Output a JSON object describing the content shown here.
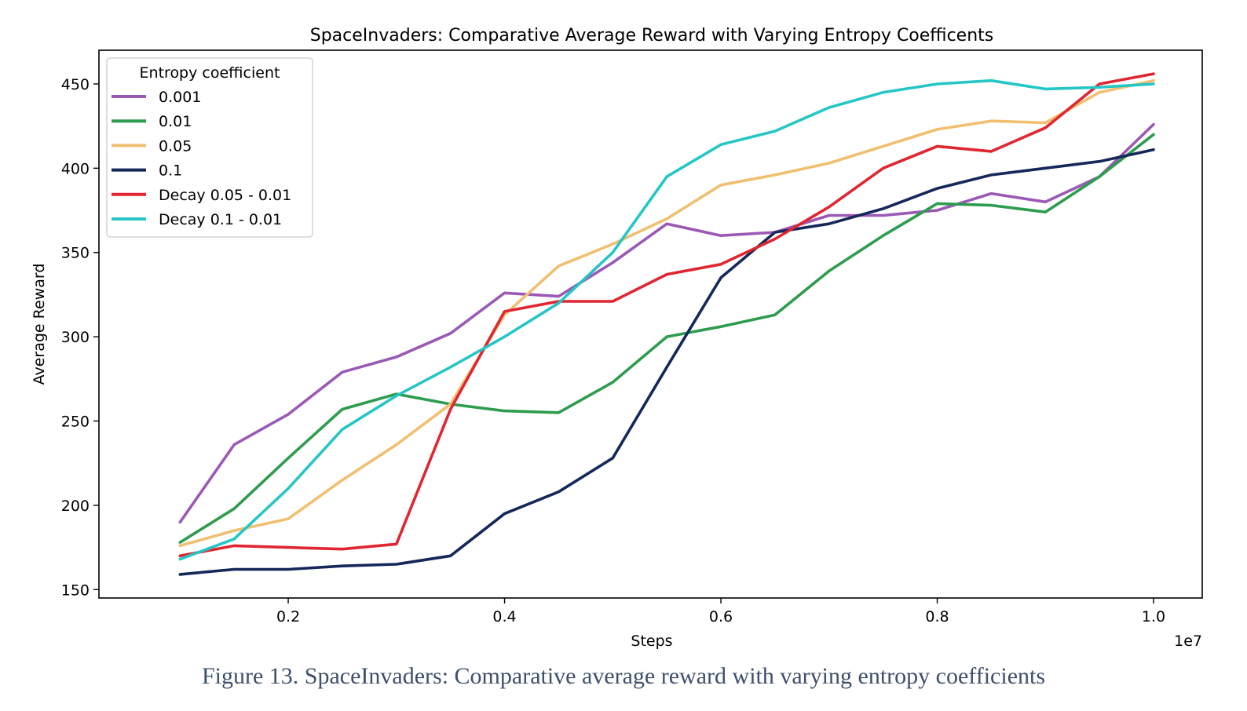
{
  "caption": "Figure 13. SpaceInvaders: Comparative average reward with varying entropy coefficients",
  "chart_data": {
    "type": "line",
    "title": "SpaceInvaders: Comparative Average Reward with Varying Entropy Coefficents",
    "xlabel": "Steps",
    "ylabel": "Average Reward",
    "x_multiplier_label": "1e7",
    "xlim": [
      0.025,
      1.045
    ],
    "ylim": [
      145,
      470
    ],
    "xticks": [
      0.2,
      0.4,
      0.6,
      0.8,
      1.0
    ],
    "xtick_labels": [
      "0.2",
      "0.4",
      "0.6",
      "0.8",
      "1.0"
    ],
    "yticks": [
      150,
      200,
      250,
      300,
      350,
      400,
      450
    ],
    "ytick_labels": [
      "150",
      "200",
      "250",
      "300",
      "350",
      "400",
      "450"
    ],
    "grid": false,
    "legend_title": "Entropy coefficient",
    "legend_position": "upper-left",
    "x": [
      0.1,
      0.15,
      0.2,
      0.25,
      0.3,
      0.35,
      0.4,
      0.45,
      0.5,
      0.55,
      0.6,
      0.65,
      0.7,
      0.75,
      0.8,
      0.85,
      0.9,
      0.95,
      1.0
    ],
    "series": [
      {
        "name": "0.001",
        "color": "#9b59b6",
        "values": [
          190,
          236,
          254,
          279,
          288,
          302,
          326,
          324,
          344,
          367,
          360,
          362,
          372,
          372,
          375,
          385,
          380,
          395,
          426
        ]
      },
      {
        "name": "0.01",
        "color": "#2e9c4e",
        "values": [
          178,
          198,
          228,
          257,
          266,
          260,
          256,
          255,
          273,
          300,
          306,
          313,
          339,
          360,
          379,
          378,
          374,
          395,
          420
        ]
      },
      {
        "name": "0.05",
        "color": "#f0c070",
        "values": [
          176,
          185,
          192,
          215,
          236,
          260,
          313,
          342,
          355,
          370,
          390,
          396,
          403,
          413,
          423,
          428,
          427,
          445,
          452
        ]
      },
      {
        "name": "0.1",
        "color": "#14285a",
        "values": [
          159,
          162,
          162,
          164,
          165,
          170,
          195,
          208,
          228,
          282,
          335,
          362,
          367,
          376,
          388,
          396,
          400,
          404,
          411
        ]
      },
      {
        "name": "Decay 0.05 - 0.01",
        "color": "#e02630",
        "values": [
          170,
          176,
          175,
          174,
          177,
          257,
          315,
          321,
          321,
          337,
          343,
          358,
          377,
          400,
          413,
          410,
          424,
          450,
          456
        ]
      },
      {
        "name": "Decay 0.1 - 0.01",
        "color": "#26c6c6",
        "values": [
          168,
          180,
          210,
          245,
          265,
          282,
          300,
          320,
          350,
          395,
          414,
          422,
          436,
          445,
          450,
          452,
          447,
          448,
          450
        ]
      }
    ]
  }
}
